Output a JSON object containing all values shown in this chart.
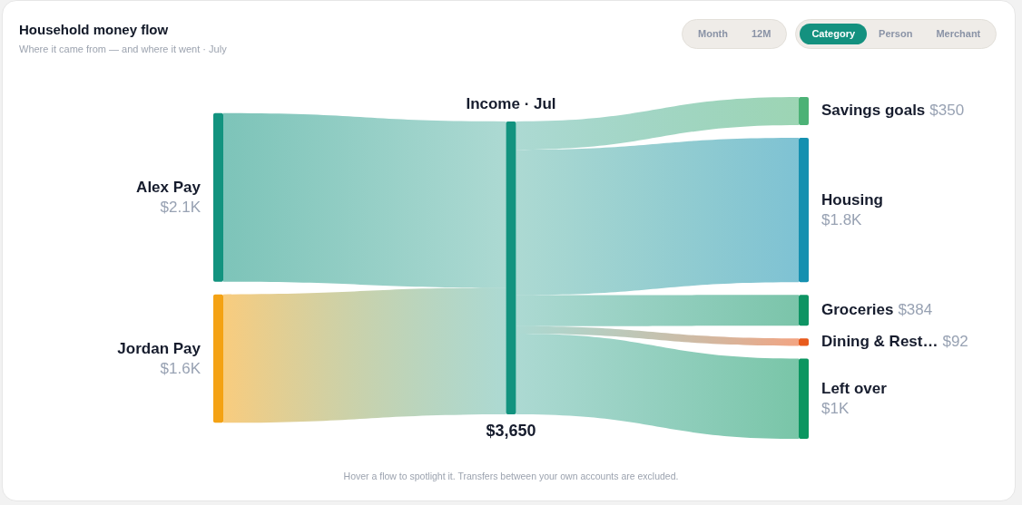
{
  "chart_data": {
    "type": "other",
    "title": "Household money flow",
    "subtitle": "Where it came from — and where it went · July",
    "categories": [
      "Alex Pay",
      "Jordan Pay",
      "Income · Jul",
      "Savings goals",
      "Housing",
      "Groceries",
      "Dining & Rest…",
      "Left over"
    ],
    "series": [
      {
        "values": [
          2100,
          1600,
          null,
          null,
          null,
          null,
          null,
          null
        ],
        "colors": [
          "#12937f",
          "#f4a214",
          null,
          null,
          null,
          null,
          null,
          null
        ],
        "value_labels": [
          "$2.1K",
          "$1.6K",
          null,
          null,
          null,
          null,
          null,
          null
        ]
      },
      {
        "values": [
          null,
          null,
          3650,
          null,
          null,
          null,
          null,
          null
        ],
        "colors": [
          null,
          null,
          "#12937f",
          null,
          null,
          null,
          null,
          null
        ],
        "value_labels": [
          null,
          null,
          "$3,650",
          null,
          null,
          null,
          null,
          null
        ]
      },
      {
        "values": [
          null,
          null,
          null,
          350,
          1800,
          384,
          92,
          1000
        ],
        "colors": [
          null,
          null,
          null,
          "#4cb276",
          "#1590b0",
          "#0e9463",
          "#e85a1c",
          "#0b9660"
        ],
        "value_labels": [
          null,
          null,
          null,
          "$350",
          "$1.8K",
          "$384",
          "$92",
          "$1K"
        ]
      }
    ],
    "annotations": [
      "Month",
      "12M",
      "Category",
      "Person",
      "Merchant",
      "Hover a flow to spotlight it. Transfers between your own accounts are excluded."
    ]
  }
}
